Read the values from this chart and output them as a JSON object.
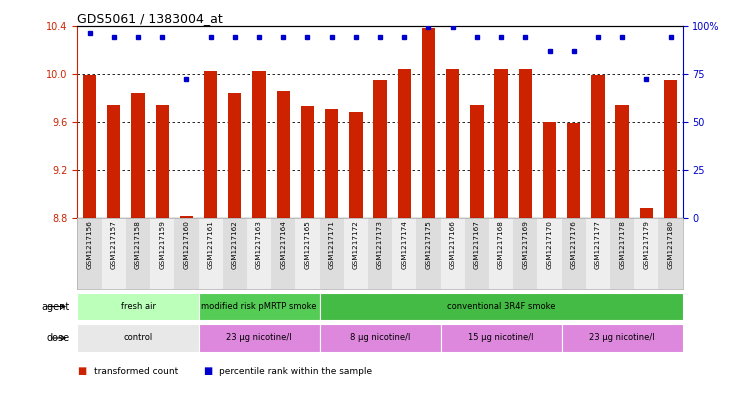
{
  "title": "GDS5061 / 1383004_at",
  "samples": [
    "GSM1217156",
    "GSM1217157",
    "GSM1217158",
    "GSM1217159",
    "GSM1217160",
    "GSM1217161",
    "GSM1217162",
    "GSM1217163",
    "GSM1217164",
    "GSM1217165",
    "GSM1217171",
    "GSM1217172",
    "GSM1217173",
    "GSM1217174",
    "GSM1217175",
    "GSM1217166",
    "GSM1217167",
    "GSM1217168",
    "GSM1217169",
    "GSM1217170",
    "GSM1217176",
    "GSM1217177",
    "GSM1217178",
    "GSM1217179",
    "GSM1217180"
  ],
  "bar_values": [
    9.99,
    9.74,
    9.84,
    9.74,
    8.82,
    10.02,
    9.84,
    10.02,
    9.86,
    9.73,
    9.71,
    9.68,
    9.95,
    10.04,
    10.38,
    10.04,
    9.74,
    10.04,
    10.04,
    9.6,
    9.59,
    9.99,
    9.74,
    8.88,
    9.95
  ],
  "percentile_values": [
    96,
    94,
    94,
    94,
    72,
    94,
    94,
    94,
    94,
    94,
    94,
    94,
    94,
    94,
    99,
    99,
    94,
    94,
    94,
    87,
    87,
    94,
    94,
    72,
    94
  ],
  "bar_color": "#cc2200",
  "dot_color": "#0000cc",
  "ylim_left": [
    8.8,
    10.4
  ],
  "ylim_right": [
    0,
    100
  ],
  "yticks_left": [
    8.8,
    9.2,
    9.6,
    10.0,
    10.4
  ],
  "yticks_right": [
    0,
    25,
    50,
    75,
    100
  ],
  "grid_values": [
    9.2,
    9.6,
    10.0
  ],
  "agent_groups": [
    {
      "label": "fresh air",
      "start": 0,
      "end": 5,
      "color": "#bbffbb"
    },
    {
      "label": "modified risk pMRTP smoke",
      "start": 5,
      "end": 10,
      "color": "#55cc55"
    },
    {
      "label": "conventional 3R4F smoke",
      "start": 10,
      "end": 25,
      "color": "#44bb44"
    }
  ],
  "dose_groups": [
    {
      "label": "control",
      "start": 0,
      "end": 5,
      "color": "#e8e8e8"
    },
    {
      "label": "23 μg nicotine/l",
      "start": 5,
      "end": 10,
      "color": "#dd88dd"
    },
    {
      "label": "8 μg nicotine/l",
      "start": 10,
      "end": 15,
      "color": "#dd88dd"
    },
    {
      "label": "15 μg nicotine/l",
      "start": 15,
      "end": 20,
      "color": "#dd88dd"
    },
    {
      "label": "23 μg nicotine/l",
      "start": 20,
      "end": 25,
      "color": "#dd88dd"
    }
  ],
  "bg_color": "#ffffff",
  "bar_width": 0.55,
  "fig_width": 7.38,
  "fig_height": 3.93,
  "dpi": 100
}
